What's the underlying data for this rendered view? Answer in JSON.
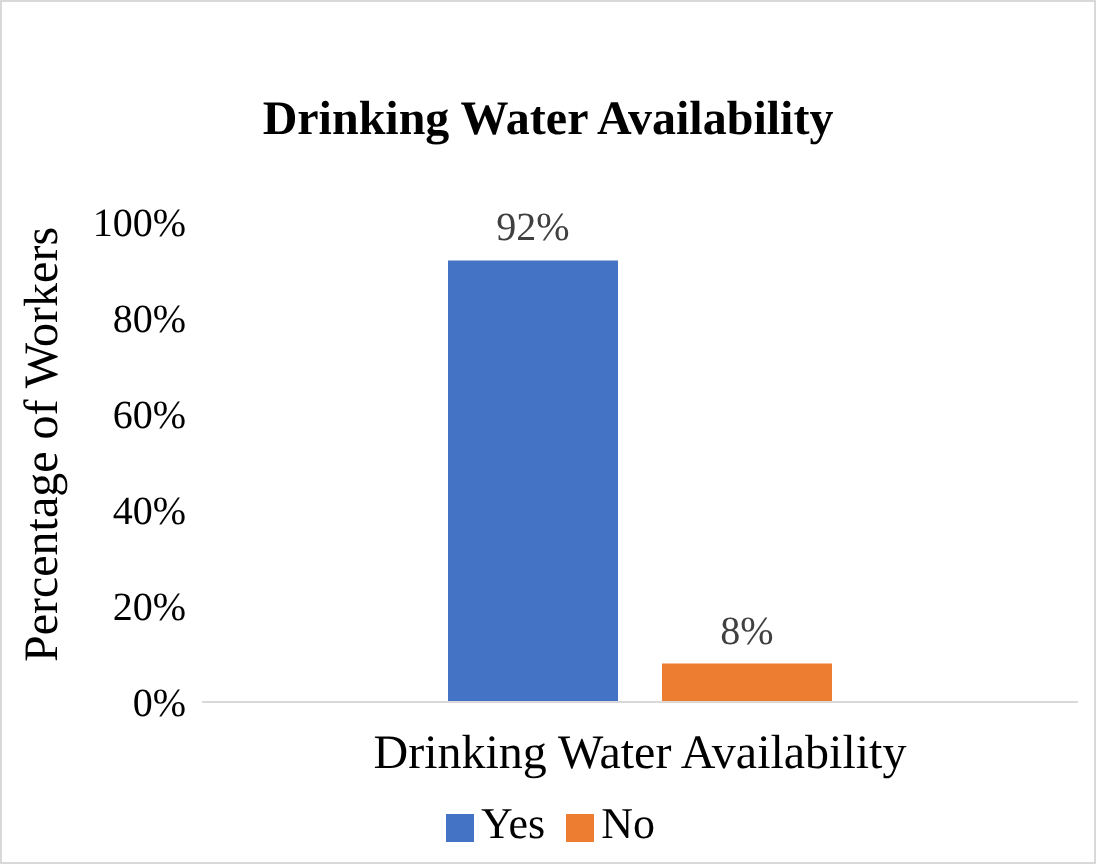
{
  "chart_data": {
    "type": "bar",
    "title": "Drinking Water Availability",
    "ylabel": "Percentage of Workers",
    "categories": [
      "Drinking Water Availability"
    ],
    "series": [
      {
        "name": "Yes",
        "color": "#4472c4",
        "values": [
          92
        ],
        "value_labels": [
          "92%"
        ]
      },
      {
        "name": "No",
        "color": "#ed7d31",
        "values": [
          8
        ],
        "value_labels": [
          "8%"
        ]
      }
    ],
    "ylim": [
      0,
      100
    ],
    "yticks": [
      {
        "value": 0,
        "label": "0%"
      },
      {
        "value": 20,
        "label": "20%"
      },
      {
        "value": 40,
        "label": "40%"
      },
      {
        "value": 60,
        "label": "60%"
      },
      {
        "value": 80,
        "label": "80%"
      },
      {
        "value": 100,
        "label": "100%"
      }
    ],
    "grid": false,
    "legend": "bottom"
  }
}
